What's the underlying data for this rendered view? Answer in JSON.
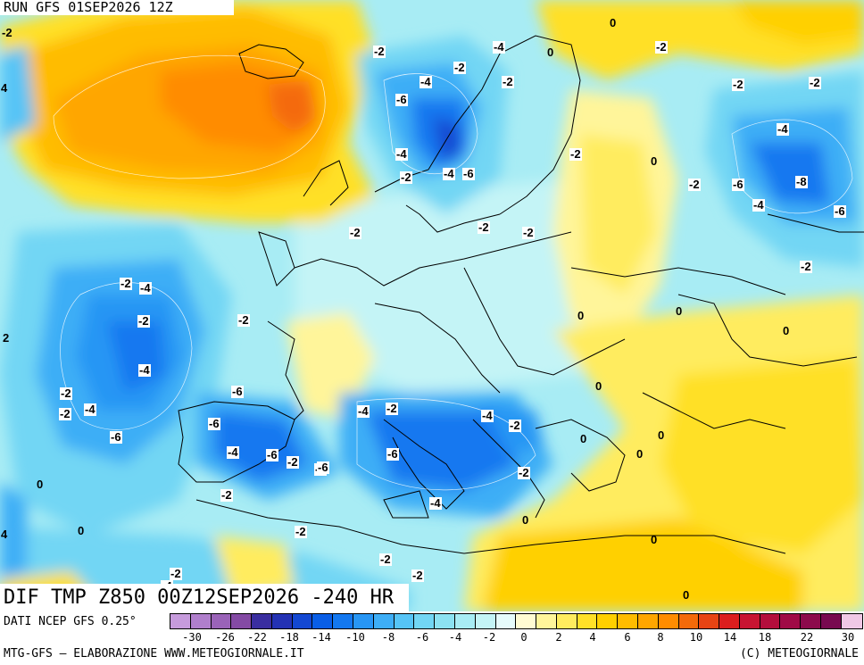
{
  "header": {
    "run_label": "RUN GFS 01SEP2026 12Z",
    "map_title": "DIF TMP Z850 00Z12SEP2026 -240 HR"
  },
  "footer": {
    "data_source": "DATI NCEP GFS 0.25°",
    "credit": "MTG-GFS – ELABORAZIONE WWW.METEOGIORNALE.IT",
    "copyright": "(C) METEOGIORNALE"
  },
  "legend": {
    "colors": [
      "#c69bdc",
      "#b07fcc",
      "#9a63b8",
      "#844aa4",
      "#3a2ea0",
      "#2432b4",
      "#1448d2",
      "#0a5ee6",
      "#1478f0",
      "#2896f4",
      "#3eaef6",
      "#56c4f6",
      "#72d6f4",
      "#8ce2f2",
      "#a8ecf4",
      "#c4f4f6",
      "#e6fbfb",
      "#fffbd2",
      "#fff59a",
      "#ffec5e",
      "#ffe028",
      "#ffd000",
      "#ffbc00",
      "#ffa600",
      "#ff8c00",
      "#f46a0a",
      "#e84414",
      "#dc1e1e",
      "#c81432",
      "#b40e3c",
      "#a00a46",
      "#8c0a4c",
      "#780a50",
      "#f0c8e6"
    ],
    "ticks": [
      "-30",
      "-26",
      "-22",
      "-18",
      "-14",
      "-10",
      "-8",
      "-6",
      "-4",
      "-2",
      "0",
      "2",
      "4",
      "6",
      "8",
      "10",
      "14",
      "18",
      "22",
      "30"
    ]
  },
  "map_labels": [
    {
      "text": "-2",
      "bare": true
    },
    {
      "text": "4",
      "bare": true
    },
    {
      "text": "2",
      "bare": true
    },
    {
      "text": "4",
      "bare": true
    },
    {
      "text": "-2"
    },
    {
      "text": "-4"
    },
    {
      "text": "-2"
    },
    {
      "text": "-2"
    },
    {
      "text": "0",
      "bare": true
    },
    {
      "text": "0",
      "bare": true
    },
    {
      "text": "-2"
    },
    {
      "text": "-2"
    },
    {
      "text": "-2"
    },
    {
      "text": "-4"
    },
    {
      "text": "-6"
    },
    {
      "text": "-4"
    },
    {
      "text": "-2"
    },
    {
      "text": "-6"
    },
    {
      "text": "-4"
    },
    {
      "text": "-8"
    },
    {
      "text": "-6"
    },
    {
      "text": "-2"
    },
    {
      "text": "0",
      "bare": true
    },
    {
      "text": "-2"
    },
    {
      "text": "-6"
    },
    {
      "text": "-8"
    },
    {
      "text": "-4"
    },
    {
      "text": "-6"
    },
    {
      "text": "-2"
    },
    {
      "text": "0",
      "bare": true
    },
    {
      "text": "-2"
    },
    {
      "text": "-2"
    },
    {
      "text": "-2"
    },
    {
      "text": "-2"
    },
    {
      "text": "-4"
    },
    {
      "text": "-6"
    },
    {
      "text": "-2"
    },
    {
      "text": "0",
      "bare": true
    },
    {
      "text": "0",
      "bare": true
    },
    {
      "text": "0",
      "bare": true
    },
    {
      "text": "-4"
    },
    {
      "text": "-2"
    },
    {
      "text": "-4"
    },
    {
      "text": "-2"
    },
    {
      "text": "-6"
    },
    {
      "text": "-6"
    },
    {
      "text": "-2"
    },
    {
      "text": "-4"
    },
    {
      "text": "-6"
    },
    {
      "text": "-6"
    },
    {
      "text": "-4"
    },
    {
      "text": "-2"
    },
    {
      "text": "-4"
    },
    {
      "text": "-2"
    },
    {
      "text": "-6"
    },
    {
      "text": "-4"
    },
    {
      "text": "-2"
    },
    {
      "text": "-6"
    },
    {
      "text": "-4"
    },
    {
      "text": "-2"
    },
    {
      "text": "-2"
    },
    {
      "text": "-4"
    },
    {
      "text": "-2"
    },
    {
      "text": "0",
      "bare": true
    },
    {
      "text": "0",
      "bare": true
    },
    {
      "text": "0",
      "bare": true
    },
    {
      "text": "0",
      "bare": true
    },
    {
      "text": "0",
      "bare": true
    },
    {
      "text": "0",
      "bare": true
    },
    {
      "text": "0",
      "bare": true
    },
    {
      "text": "0",
      "bare": true
    },
    {
      "text": "-2"
    },
    {
      "text": "-2"
    },
    {
      "text": "-2"
    },
    {
      "text": "-4"
    },
    {
      "text": "-2"
    }
  ]
}
